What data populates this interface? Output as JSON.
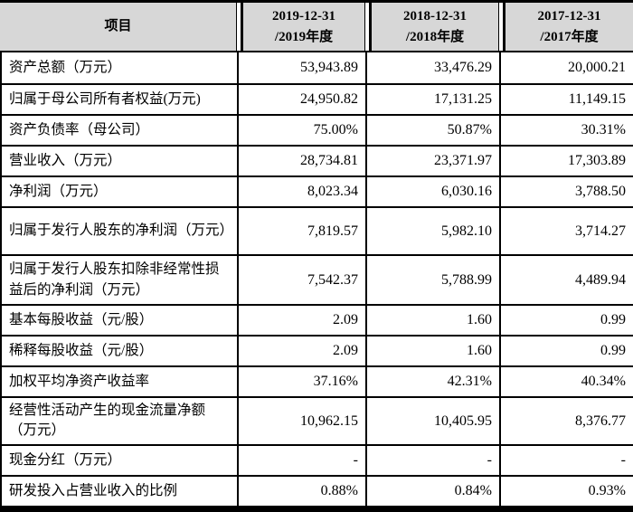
{
  "table": {
    "header": {
      "item_label": "项目",
      "columns": [
        {
          "line1": "2019-12-31",
          "line2": "/2019年度"
        },
        {
          "line1": "2018-12-31",
          "line2": "/2018年度"
        },
        {
          "line1": "2017-12-31",
          "line2": "/2017年度"
        }
      ]
    },
    "rows": [
      {
        "label": "资产总额（万元）",
        "values": [
          "53,943.89",
          "33,476.29",
          "20,000.21"
        ]
      },
      {
        "label": "归属于母公司所有者权益(万元)",
        "values": [
          "24,950.82",
          "17,131.25",
          "11,149.15"
        ]
      },
      {
        "label": "资产负债率（母公司）",
        "values": [
          "75.00%",
          "50.87%",
          "30.31%"
        ]
      },
      {
        "label": "营业收入（万元）",
        "values": [
          "28,734.81",
          "23,371.97",
          "17,303.89"
        ]
      },
      {
        "label": "净利润（万元）",
        "values": [
          "8,023.34",
          "6,030.16",
          "3,788.50"
        ]
      },
      {
        "label": "归属于发行人股东的净利润（万元）",
        "values": [
          "7,819.57",
          "5,982.10",
          "3,714.27"
        ]
      },
      {
        "label": "归属于发行人股东扣除非经常性损益后的净利润（万元）",
        "values": [
          "7,542.37",
          "5,788.99",
          "4,489.94"
        ]
      },
      {
        "label": "基本每股收益（元/股）",
        "values": [
          "2.09",
          "1.60",
          "0.99"
        ]
      },
      {
        "label": "稀释每股收益（元/股）",
        "values": [
          "2.09",
          "1.60",
          "0.99"
        ]
      },
      {
        "label": "加权平均净资产收益率",
        "values": [
          "37.16%",
          "42.31%",
          "40.34%"
        ]
      },
      {
        "label": "经营性活动产生的现金流量净额（万元）",
        "values": [
          "10,962.15",
          "10,405.95",
          "8,376.77"
        ]
      },
      {
        "label": "现金分红（万元）",
        "values": [
          "-",
          "-",
          "-"
        ]
      },
      {
        "label": "研发投入占营业收入的比例",
        "values": [
          "0.88%",
          "0.84%",
          "0.93%"
        ]
      }
    ],
    "colors": {
      "header_bg": "#d7d7d7",
      "border": "#000000",
      "text": "#000000",
      "bottom_bar": "#000000"
    }
  }
}
